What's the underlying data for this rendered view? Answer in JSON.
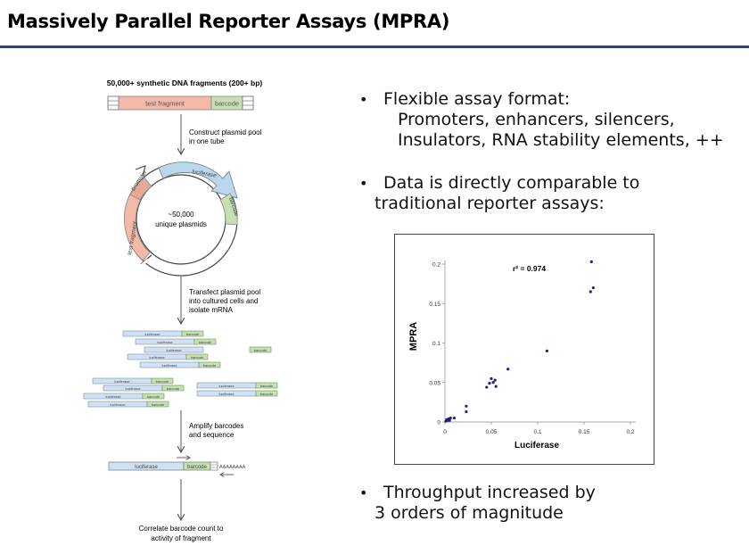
{
  "title": "Massively Parallel Reporter Assays (MPRA)",
  "diagram": {
    "header": "50,000+ synthetic DNA fragments (200+ bp)",
    "test_fragment": "test fragment",
    "barcode": "barcode",
    "step1": [
      "Construct plasmid pool",
      "in one tube"
    ],
    "luciferase": "luciferase",
    "promoter": "promoter",
    "plasmid_center": [
      "~50,000",
      "unique plasmids"
    ],
    "step2": [
      "Transfect plasmid pool",
      "into cultured cells and",
      "isolate mRNA"
    ],
    "step3": [
      "Amplify barcodes",
      "and sequence"
    ],
    "polya": "AAAAAAAA",
    "step4": [
      "Correlate barcode count to",
      "activity of fragment"
    ]
  },
  "bullets": {
    "b1_line1": "Flexible assay format:",
    "b1_line2": "Promoters, enhancers, silencers,",
    "b1_line3": "Insulators, RNA stability elements, ++",
    "b2_line1": "Data is directly comparable to",
    "b2_line2": "traditional reporter assays:",
    "b3_line1": "Throughput increased by",
    "b3_line2": "3 orders of magnitude",
    "dot": "•"
  },
  "chart_data": {
    "type": "scatter",
    "xlabel": "Luciferase",
    "ylabel": "MPRA",
    "xlim": [
      0,
      0.2
    ],
    "ylim": [
      0,
      0.2
    ],
    "xticks": [
      "0",
      "0.05",
      "0.1",
      "0.15",
      "0.2"
    ],
    "yticks": [
      "0",
      "0.05",
      "0.1",
      "0.15",
      "0.2"
    ],
    "annotation": "r² = 0.974",
    "point_color": "#1a237e",
    "points": [
      [
        0.001,
        0.001
      ],
      [
        0.002,
        0.003
      ],
      [
        0.003,
        0.002
      ],
      [
        0.004,
        0.004
      ],
      [
        0.005,
        0.002
      ],
      [
        0.006,
        0.005
      ],
      [
        0.01,
        0.005
      ],
      [
        0.023,
        0.013
      ],
      [
        0.023,
        0.02
      ],
      [
        0.045,
        0.044
      ],
      [
        0.048,
        0.049
      ],
      [
        0.05,
        0.055
      ],
      [
        0.052,
        0.05
      ],
      [
        0.054,
        0.053
      ],
      [
        0.055,
        0.045
      ],
      [
        0.068,
        0.067
      ],
      [
        0.11,
        0.09
      ],
      [
        0.157,
        0.165
      ],
      [
        0.16,
        0.17
      ],
      [
        0.158,
        0.203
      ]
    ]
  }
}
